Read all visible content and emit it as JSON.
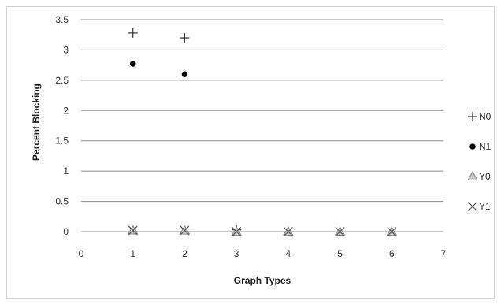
{
  "chart_data": {
    "type": "scatter",
    "title": "",
    "xlabel": "Graph Types",
    "ylabel": "Percent Blocking",
    "xlim": [
      0,
      7
    ],
    "ylim": [
      0,
      3.5
    ],
    "x_ticks": [
      "0",
      "1",
      "2",
      "3",
      "4",
      "5",
      "6",
      "7"
    ],
    "y_ticks": [
      "0",
      "0.5",
      "1",
      "1.5",
      "2",
      "2.5",
      "3",
      "3.5"
    ],
    "grid": "horizontal",
    "legend_position": "right",
    "series": [
      {
        "name": "N0",
        "marker": "plus",
        "color": "#333333",
        "x": [
          1,
          2,
          3
        ],
        "y": [
          3.28,
          3.2,
          0.03
        ]
      },
      {
        "name": "N1",
        "marker": "dot",
        "color": "#000000",
        "x": [
          1,
          2
        ],
        "y": [
          2.77,
          2.6
        ]
      },
      {
        "name": "Y0",
        "marker": "triangle",
        "color": "#8c8c8c",
        "x": [
          1,
          2,
          3,
          4,
          5,
          6
        ],
        "y": [
          0.02,
          0.02,
          0.0,
          0.0,
          0.0,
          0.0
        ]
      },
      {
        "name": "Y1",
        "marker": "x",
        "color": "#555555",
        "x": [
          1,
          2,
          3,
          4,
          5,
          6
        ],
        "y": [
          0.02,
          0.02,
          0.0,
          0.0,
          0.0,
          0.0
        ]
      }
    ]
  }
}
